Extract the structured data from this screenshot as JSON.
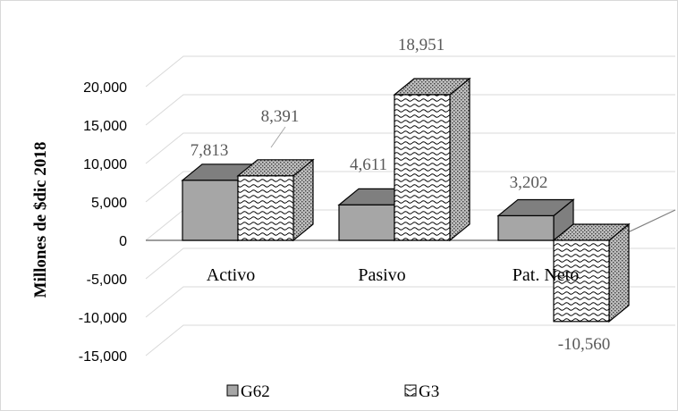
{
  "chart_data": {
    "type": "bar",
    "title": "",
    "ylabel": "Millones de $dic 2018",
    "xlabel": "",
    "categories": [
      "Activo",
      "Pasivo",
      "Pat. Neto"
    ],
    "series": [
      {
        "name": "G62",
        "values": [
          7813,
          4611,
          3202
        ],
        "labels": [
          "7,813",
          "4,611",
          "3,202"
        ],
        "color": "#a6a6a6",
        "pattern": "solid"
      },
      {
        "name": "G3",
        "values": [
          8391,
          18951,
          -10560
        ],
        "labels": [
          "8,391",
          "18,951",
          "-10,560"
        ],
        "color": "#ffffff",
        "pattern": "wavy-hatch"
      }
    ],
    "ylim": [
      -15000,
      20000
    ],
    "yticks": [
      "20,000",
      "15,000",
      "10,000",
      "5,000",
      "0",
      "-5,000",
      "-10,000",
      "-15,000"
    ],
    "ytick_values": [
      20000,
      15000,
      10000,
      5000,
      0,
      -5000,
      -10000,
      -15000
    ],
    "grid": true,
    "three_d": true,
    "legend_position": "bottom"
  }
}
